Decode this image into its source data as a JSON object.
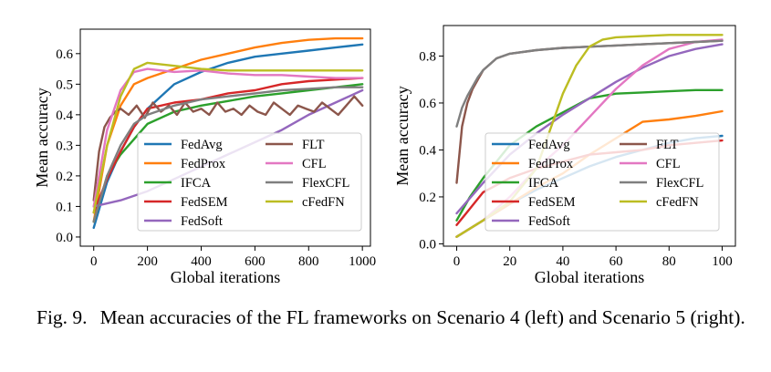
{
  "caption": {
    "label": "Fig. 9.",
    "text": "Mean accuracies of the FL frameworks on Scenario 4 (left) and Scenario 5 (right)."
  },
  "colors": {
    "FedAvg": "#1f77b4",
    "FedProx": "#ff7f0e",
    "IFCA": "#2ca02c",
    "FedSEM": "#d62728",
    "FedSoft": "#9467bd",
    "FLT": "#8c564b",
    "CFL": "#e377c2",
    "FlexCFL": "#7f7f7f",
    "cFedFN": "#bcbd22"
  },
  "chart_data": [
    {
      "type": "line",
      "title": "",
      "xlabel": "Global iterations",
      "ylabel": "Mean accuracy",
      "xlim": [
        -50,
        1030
      ],
      "ylim": [
        -0.03,
        0.68
      ],
      "xticks": [
        0,
        200,
        400,
        600,
        800,
        1000
      ],
      "yticks": [
        0.0,
        0.1,
        0.2,
        0.3,
        0.4,
        0.5,
        0.6
      ],
      "grid": false,
      "legend": {
        "placement": "lower-right",
        "columns": 2
      },
      "series": [
        {
          "name": "FedAvg",
          "x": [
            0,
            50,
            100,
            150,
            200,
            300,
            400,
            500,
            600,
            700,
            800,
            900,
            1000
          ],
          "y": [
            0.03,
            0.18,
            0.28,
            0.36,
            0.42,
            0.5,
            0.54,
            0.57,
            0.59,
            0.6,
            0.61,
            0.62,
            0.63
          ]
        },
        {
          "name": "FedProx",
          "x": [
            0,
            50,
            100,
            150,
            200,
            300,
            400,
            500,
            600,
            700,
            800,
            900,
            1000
          ],
          "y": [
            0.05,
            0.3,
            0.43,
            0.5,
            0.52,
            0.55,
            0.58,
            0.6,
            0.62,
            0.635,
            0.645,
            0.65,
            0.65
          ]
        },
        {
          "name": "IFCA",
          "x": [
            0,
            50,
            100,
            150,
            200,
            300,
            400,
            500,
            600,
            700,
            800,
            900,
            1000
          ],
          "y": [
            0.05,
            0.2,
            0.27,
            0.32,
            0.37,
            0.41,
            0.43,
            0.445,
            0.46,
            0.47,
            0.48,
            0.49,
            0.5
          ]
        },
        {
          "name": "FedSEM",
          "x": [
            0,
            50,
            100,
            150,
            200,
            300,
            400,
            500,
            600,
            700,
            800,
            900,
            1000
          ],
          "y": [
            0.08,
            0.19,
            0.28,
            0.36,
            0.42,
            0.44,
            0.45,
            0.47,
            0.48,
            0.5,
            0.51,
            0.515,
            0.52
          ]
        },
        {
          "name": "FedSoft",
          "x": [
            0,
            50,
            100,
            200,
            300,
            400,
            500,
            600,
            700,
            800,
            900,
            1000
          ],
          "y": [
            0.1,
            0.11,
            0.12,
            0.15,
            0.19,
            0.23,
            0.27,
            0.31,
            0.35,
            0.4,
            0.44,
            0.48
          ]
        },
        {
          "name": "FLT",
          "x": [
            0,
            20,
            40,
            60,
            80,
            100,
            130,
            160,
            190,
            220,
            250,
            280,
            310,
            340,
            370,
            400,
            430,
            460,
            490,
            520,
            550,
            580,
            610,
            640,
            670,
            700,
            730,
            760,
            790,
            820,
            850,
            880,
            910,
            940,
            970,
            1000
          ],
          "y": [
            0.12,
            0.28,
            0.36,
            0.39,
            0.41,
            0.42,
            0.4,
            0.43,
            0.39,
            0.44,
            0.41,
            0.43,
            0.4,
            0.44,
            0.41,
            0.42,
            0.4,
            0.44,
            0.41,
            0.42,
            0.4,
            0.43,
            0.41,
            0.4,
            0.44,
            0.42,
            0.4,
            0.43,
            0.42,
            0.41,
            0.44,
            0.42,
            0.4,
            0.43,
            0.46,
            0.43
          ]
        },
        {
          "name": "CFL",
          "x": [
            0,
            50,
            100,
            150,
            200,
            300,
            400,
            500,
            600,
            700,
            800,
            900,
            1000
          ],
          "y": [
            0.1,
            0.35,
            0.48,
            0.54,
            0.55,
            0.54,
            0.545,
            0.535,
            0.53,
            0.53,
            0.525,
            0.52,
            0.52
          ]
        },
        {
          "name": "FlexCFL",
          "x": [
            0,
            50,
            100,
            150,
            200,
            300,
            400,
            500,
            600,
            700,
            800,
            900,
            1000
          ],
          "y": [
            0.05,
            0.2,
            0.3,
            0.37,
            0.4,
            0.43,
            0.45,
            0.46,
            0.47,
            0.48,
            0.485,
            0.49,
            0.49
          ]
        },
        {
          "name": "cFedFN",
          "x": [
            0,
            50,
            100,
            150,
            200,
            300,
            400,
            500,
            600,
            700,
            800,
            900,
            1000
          ],
          "y": [
            0.08,
            0.3,
            0.46,
            0.55,
            0.57,
            0.56,
            0.55,
            0.545,
            0.545,
            0.545,
            0.545,
            0.545,
            0.545
          ]
        }
      ]
    },
    {
      "type": "line",
      "title": "",
      "xlabel": "Global iterations",
      "ylabel": "Mean accuracy",
      "xlim": [
        -5,
        105
      ],
      "ylim": [
        -0.01,
        0.93
      ],
      "xticks": [
        0,
        20,
        40,
        60,
        80,
        100
      ],
      "yticks": [
        0.0,
        0.2,
        0.4,
        0.6,
        0.8
      ],
      "grid": false,
      "legend": {
        "placement": "lower-left",
        "columns": 2
      },
      "series": [
        {
          "name": "FedAvg",
          "x": [
            0,
            10,
            20,
            30,
            40,
            50,
            60,
            70,
            80,
            90,
            100
          ],
          "y": [
            0.03,
            0.1,
            0.17,
            0.23,
            0.28,
            0.33,
            0.37,
            0.4,
            0.43,
            0.45,
            0.46
          ]
        },
        {
          "name": "FedProx",
          "x": [
            0,
            10,
            20,
            30,
            40,
            50,
            60,
            70,
            80,
            90,
            100
          ],
          "y": [
            0.03,
            0.1,
            0.17,
            0.24,
            0.3,
            0.38,
            0.45,
            0.52,
            0.53,
            0.545,
            0.565
          ]
        },
        {
          "name": "IFCA",
          "x": [
            0,
            5,
            10,
            20,
            30,
            40,
            50,
            60,
            70,
            80,
            90,
            100
          ],
          "y": [
            0.1,
            0.2,
            0.28,
            0.42,
            0.5,
            0.56,
            0.62,
            0.64,
            0.645,
            0.65,
            0.655,
            0.655
          ]
        },
        {
          "name": "FedSEM",
          "x": [
            0,
            5,
            10,
            20,
            30,
            40,
            50,
            60,
            70,
            80,
            90,
            100
          ],
          "y": [
            0.08,
            0.15,
            0.22,
            0.28,
            0.32,
            0.35,
            0.38,
            0.39,
            0.4,
            0.42,
            0.43,
            0.44
          ]
        },
        {
          "name": "FedSoft",
          "x": [
            0,
            10,
            20,
            30,
            40,
            50,
            60,
            70,
            80,
            90,
            100
          ],
          "y": [
            0.13,
            0.26,
            0.38,
            0.47,
            0.55,
            0.62,
            0.69,
            0.75,
            0.8,
            0.83,
            0.85
          ]
        },
        {
          "name": "FLT",
          "x": [
            0,
            2,
            4,
            6,
            8,
            10,
            15,
            20,
            30,
            40,
            50,
            60,
            70,
            80,
            90,
            100
          ],
          "y": [
            0.26,
            0.5,
            0.6,
            0.66,
            0.7,
            0.74,
            0.79,
            0.81,
            0.825,
            0.835,
            0.84,
            0.845,
            0.85,
            0.855,
            0.86,
            0.865
          ]
        },
        {
          "name": "CFL",
          "x": [
            0,
            10,
            20,
            30,
            40,
            50,
            60,
            70,
            80,
            90,
            100
          ],
          "y": [
            0.03,
            0.1,
            0.2,
            0.32,
            0.42,
            0.54,
            0.66,
            0.76,
            0.83,
            0.86,
            0.87
          ]
        },
        {
          "name": "FlexCFL",
          "x": [
            0,
            2,
            4,
            6,
            8,
            10,
            15,
            20,
            30,
            40,
            50,
            60,
            70,
            80,
            90,
            100
          ],
          "y": [
            0.5,
            0.58,
            0.63,
            0.67,
            0.71,
            0.74,
            0.79,
            0.81,
            0.825,
            0.835,
            0.84,
            0.845,
            0.85,
            0.855,
            0.86,
            0.865
          ]
        },
        {
          "name": "cFedFN",
          "x": [
            0,
            10,
            20,
            30,
            35,
            40,
            45,
            50,
            55,
            60,
            70,
            80,
            90,
            100
          ],
          "y": [
            0.03,
            0.1,
            0.18,
            0.32,
            0.48,
            0.64,
            0.76,
            0.84,
            0.87,
            0.88,
            0.885,
            0.89,
            0.89,
            0.89
          ]
        }
      ]
    }
  ]
}
